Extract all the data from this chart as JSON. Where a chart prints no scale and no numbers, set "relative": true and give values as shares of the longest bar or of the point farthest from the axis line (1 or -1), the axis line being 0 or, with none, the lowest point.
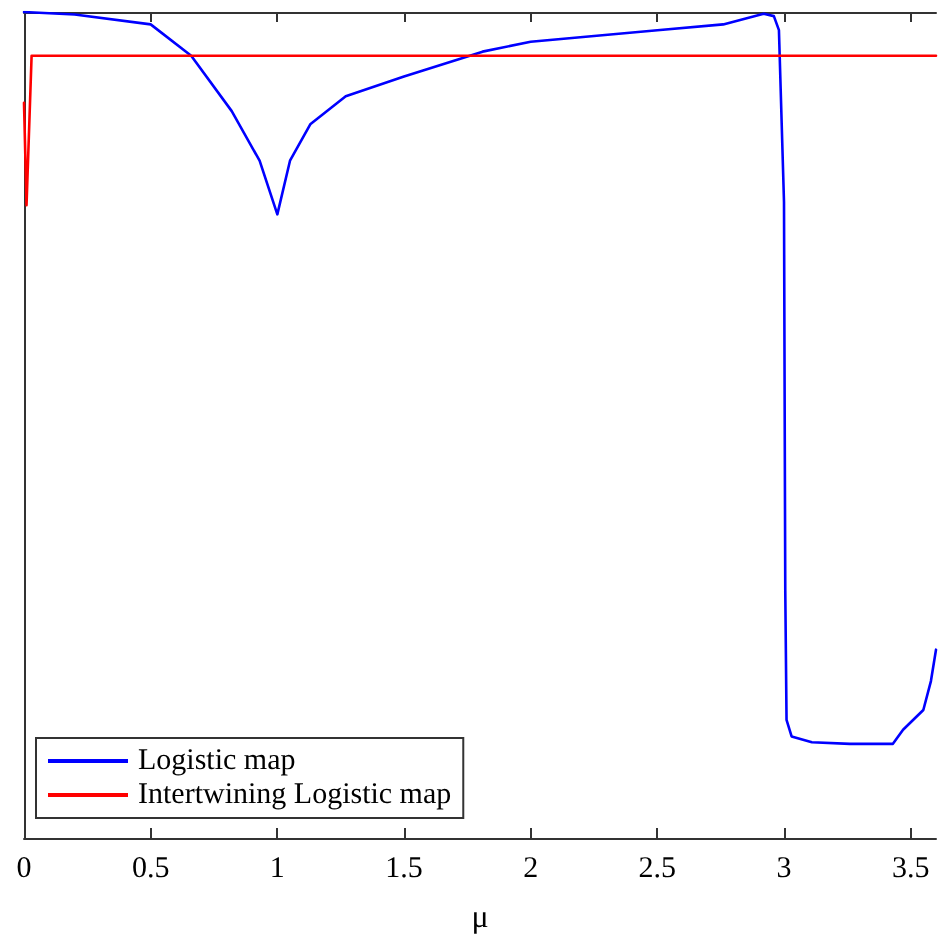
{
  "chart_data": {
    "type": "line",
    "xlabel": "μ",
    "relative": true,
    "xlim": [
      0,
      3.6
    ],
    "xticks": [
      0,
      0.5,
      1,
      1.5,
      2,
      2.5,
      3,
      3.5
    ],
    "legend": "bottom left",
    "grid": false,
    "marker": "none",
    "line_style": "solid",
    "series": [
      {
        "name": "Logistic map",
        "color": "#0000ff",
        "x": [
          0,
          0.2,
          0.5,
          0.66,
          0.82,
          0.93,
          1,
          1.05,
          1.13,
          1.27,
          1.5,
          1.81,
          2,
          2.5,
          2.76,
          2.92,
          2.96,
          2.98,
          3,
          3.005,
          3.01,
          3.03,
          3.11,
          3.26,
          3.43,
          3.47,
          3.55,
          3.58,
          3.6
        ],
        "values": [
          1,
          0.997,
          0.985,
          0.947,
          0.88,
          0.82,
          0.755,
          0.82,
          0.864,
          0.898,
          0.922,
          0.952,
          0.964,
          0.978,
          0.985,
          0.998,
          0.995,
          0.978,
          0.77,
          0.3,
          0.143,
          0.123,
          0.116,
          0.114,
          0.114,
          0.131,
          0.155,
          0.19,
          0.228
        ]
      },
      {
        "name": "Intertwining Logistic map",
        "color": "#ff0000",
        "x": [
          0,
          0.01,
          0.03,
          0.5,
          1,
          1.5,
          2,
          2.5,
          3,
          3.6
        ],
        "values": [
          0.89,
          0.766,
          0.947,
          0.947,
          0.947,
          0.947,
          0.947,
          0.947,
          0.947,
          0.947
        ]
      }
    ]
  }
}
